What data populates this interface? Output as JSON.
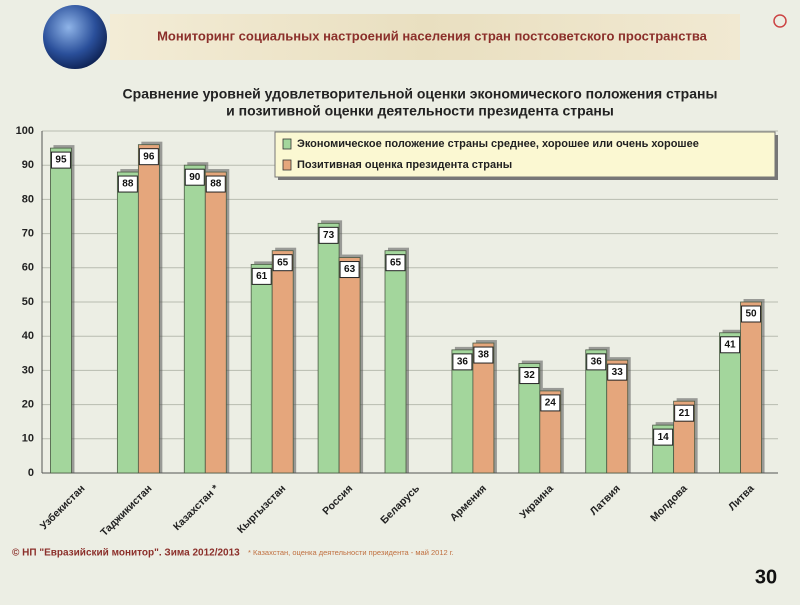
{
  "header": "Мониторинг социальных настроений населения стран постсоветского пространства",
  "chart_data": {
    "type": "bar",
    "title": [
      "Сравнение уровней удовлетворительной оценки экономического положения страны",
      "и позитивной оценки деятельности президента страны"
    ],
    "categories": [
      "Узбекистан",
      "Таджикистан",
      "Казахстан *",
      "Кыргызстан",
      "Россия",
      "Беларусь",
      "Армения",
      "Украина",
      "Латвия",
      "Молдова",
      "Литва"
    ],
    "series": [
      {
        "name": "Экономическое положение страны среднее, хорошее или очень хорошее",
        "color": "#a3d69c",
        "values": [
          95,
          88,
          90,
          61,
          73,
          65,
          36,
          32,
          36,
          14,
          41
        ]
      },
      {
        "name": "Позитивная оценка президента страны",
        "color": "#e5a67c",
        "values": [
          null,
          96,
          88,
          65,
          63,
          null,
          38,
          24,
          33,
          21,
          50
        ]
      }
    ],
    "ylim": [
      0,
      100
    ],
    "yticks": [
      0,
      10,
      20,
      30,
      40,
      50,
      60,
      70,
      80,
      90,
      100
    ],
    "grid": true,
    "legend": "top-right"
  },
  "footer": {
    "copyright": "© НП \"Евразийский монитор\". Зима 2012/2013",
    "note": "* Казахстан, оценка деятельности президента - май 2012 г.",
    "page": "30"
  }
}
